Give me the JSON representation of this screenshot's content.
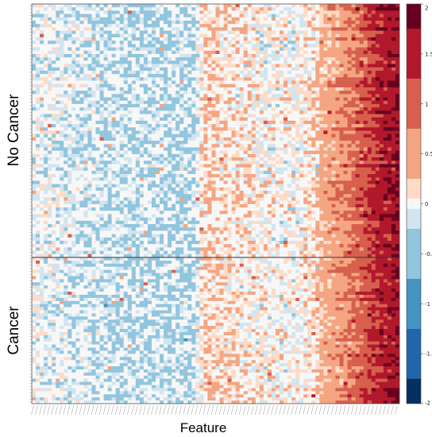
{
  "chart_data": {
    "type": "heatmap",
    "title": "",
    "xlabel": "Feature",
    "ylabel": "",
    "row_groups": [
      {
        "name": "No Cancer",
        "rows": 76
      },
      {
        "name": "Cancer",
        "rows": 47
      }
    ],
    "n_features": 92,
    "feature_profile": {
      "note": "mean z-score by feature position (left to right), read from color bands",
      "breakpoints_fraction": [
        0.0,
        0.13,
        0.24,
        0.38,
        0.44,
        0.47,
        0.52,
        0.63,
        0.72,
        0.79,
        0.88,
        0.93,
        1.0
      ],
      "mean_values": [
        -0.05,
        -0.2,
        -0.3,
        -0.35,
        -0.38,
        0.35,
        0.22,
        0.05,
        0.0,
        0.35,
        0.85,
        1.35,
        1.75
      ]
    },
    "colorbar": {
      "range": [
        -2,
        2
      ],
      "ticks": [
        "2",
        "1.5",
        "1",
        "0.5",
        "0",
        "-0.5",
        "-1",
        "-1.5",
        "-2"
      ],
      "bins": [
        {
          "from": 1.75,
          "to": 2.0,
          "color": "#67001f"
        },
        {
          "from": 1.25,
          "to": 1.75,
          "color": "#b2182b"
        },
        {
          "from": 0.75,
          "to": 1.25,
          "color": "#d6604d"
        },
        {
          "from": 0.25,
          "to": 0.75,
          "color": "#f4a582"
        },
        {
          "from": 0.05,
          "to": 0.25,
          "color": "#fddbc7"
        },
        {
          "from": -0.05,
          "to": 0.05,
          "color": "#f7f7f7"
        },
        {
          "from": -0.25,
          "to": -0.05,
          "color": "#d1e5f0"
        },
        {
          "from": -0.75,
          "to": -0.25,
          "color": "#92c5de"
        },
        {
          "from": -1.25,
          "to": -0.75,
          "color": "#4393c3"
        },
        {
          "from": -1.75,
          "to": -1.25,
          "color": "#2166ac"
        },
        {
          "from": -2.0,
          "to": -1.75,
          "color": "#053061"
        }
      ]
    },
    "grid": false,
    "legend": "right"
  },
  "labels": {
    "group_top": "No Cancer",
    "group_bottom": "Cancer",
    "x_axis": "Feature"
  }
}
